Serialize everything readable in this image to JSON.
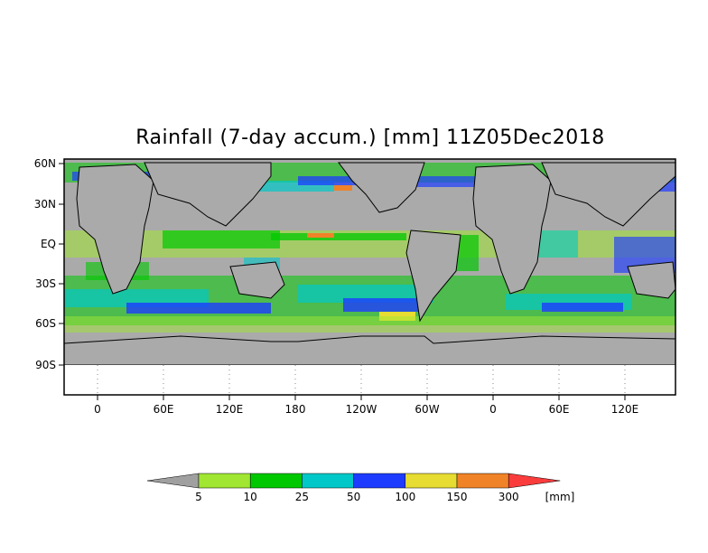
{
  "title": "Rainfall (7-day accum.) [mm] 11Z05Dec2018",
  "map": {
    "type": "global precipitation map (cylindrical equidistant projection)",
    "lat_ticks": [
      "60N",
      "30N",
      "EQ",
      "30S",
      "60S",
      "90S"
    ],
    "lon_ticks": [
      "0",
      "60E",
      "120E",
      "180",
      "120W",
      "60W",
      "0",
      "60E",
      "120E"
    ],
    "no_data_color": "#aaaaaa",
    "coastline_color": "#000000"
  },
  "colorbar": {
    "unit": "[mm]",
    "labels": [
      "5",
      "10",
      "25",
      "50",
      "100",
      "150",
      "300"
    ],
    "colors": [
      "#a0a0a0",
      "#a0e632",
      "#00c800",
      "#00c8c8",
      "#1e3cff",
      "#e6dc32",
      "#f08228",
      "#fa3c3c"
    ]
  },
  "chart_data": {
    "type": "heatmap",
    "title": "Rainfall (7-day accum.) [mm] 11Z05Dec2018",
    "y_ticks": [
      "60N",
      "30N",
      "EQ",
      "30S",
      "60S",
      "90S"
    ],
    "x_ticks": [
      "0",
      "60E",
      "120E",
      "180",
      "120W",
      "60W",
      "0",
      "60E",
      "120E"
    ],
    "colorbar_bins_mm": [
      5,
      10,
      25,
      50,
      100,
      150,
      300
    ],
    "colorbar_unit": "[mm]"
  }
}
